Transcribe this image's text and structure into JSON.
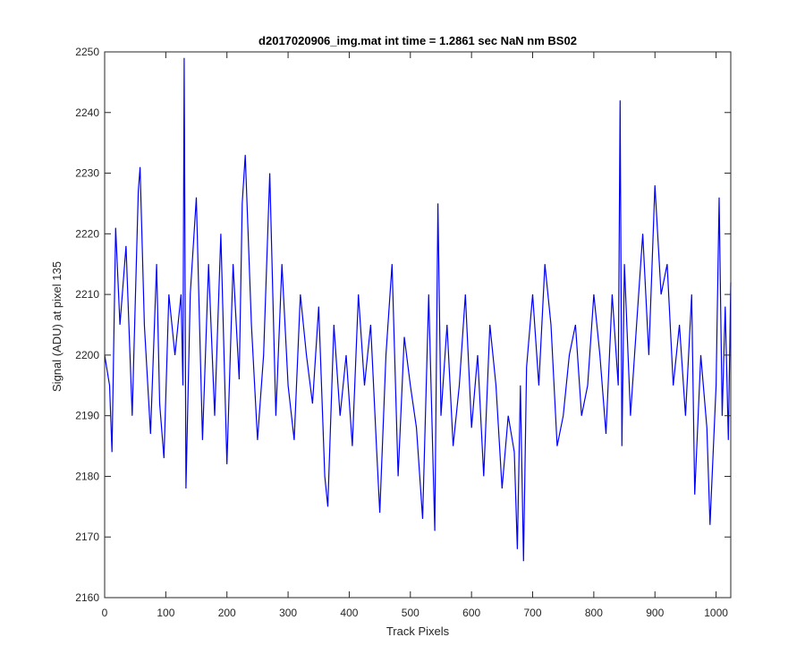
{
  "chart_data": {
    "type": "line",
    "title": "d2017020906_img.mat int time = 1.2861 sec  NaN nm BS02",
    "xlabel": "Track Pixels",
    "ylabel": "Signal (ADU) at pixel 135",
    "xlim": [
      0,
      1024
    ],
    "ylim": [
      2160,
      2250
    ],
    "xticks": [
      0,
      100,
      200,
      300,
      400,
      500,
      600,
      700,
      800,
      900,
      1000
    ],
    "yticks": [
      2160,
      2170,
      2180,
      2190,
      2200,
      2210,
      2220,
      2230,
      2240,
      2250
    ],
    "grid": false,
    "series": [
      {
        "color": "#0000ff",
        "x": [
          0,
          8,
          12,
          18,
          25,
          35,
          45,
          55,
          58,
          65,
          75,
          85,
          90,
          97,
          105,
          115,
          125,
          128,
          130,
          133,
          140,
          150,
          160,
          170,
          180,
          190,
          200,
          210,
          220,
          225,
          230,
          240,
          250,
          260,
          270,
          280,
          290,
          300,
          310,
          320,
          330,
          340,
          350,
          360,
          365,
          375,
          385,
          395,
          405,
          415,
          425,
          435,
          445,
          450,
          460,
          470,
          480,
          490,
          500,
          510,
          520,
          530,
          540,
          545,
          550,
          560,
          570,
          580,
          590,
          600,
          610,
          620,
          630,
          640,
          650,
          660,
          670,
          675,
          680,
          685,
          690,
          700,
          710,
          720,
          730,
          740,
          750,
          760,
          770,
          780,
          790,
          800,
          810,
          820,
          830,
          840,
          843,
          846,
          850,
          860,
          870,
          880,
          890,
          900,
          910,
          920,
          930,
          940,
          950,
          960,
          965,
          975,
          985,
          990,
          1000,
          1005,
          1010,
          1015,
          1020,
          1024
        ],
        "y": [
          2200,
          2195,
          2184,
          2221,
          2205,
          2218,
          2190,
          2227,
          2231,
          2205,
          2187,
          2215,
          2192,
          2183,
          2210,
          2200,
          2210,
          2195,
          2249,
          2178,
          2210,
          2226,
          2186,
          2215,
          2190,
          2220,
          2182,
          2215,
          2196,
          2225,
          2233,
          2205,
          2186,
          2200,
          2230,
          2190,
          2215,
          2195,
          2186,
          2210,
          2200,
          2192,
          2208,
          2180,
          2175,
          2205,
          2190,
          2200,
          2185,
          2210,
          2195,
          2205,
          2184,
          2174,
          2200,
          2215,
          2180,
          2203,
          2195,
          2188,
          2173,
          2210,
          2171,
          2225,
          2190,
          2205,
          2185,
          2195,
          2210,
          2188,
          2200,
          2180,
          2205,
          2195,
          2178,
          2190,
          2184,
          2168,
          2195,
          2166,
          2198,
          2210,
          2195,
          2215,
          2205,
          2185,
          2190,
          2200,
          2205,
          2190,
          2195,
          2210,
          2200,
          2187,
          2210,
          2195,
          2242,
          2185,
          2215,
          2190,
          2205,
          2220,
          2200,
          2228,
          2210,
          2215,
          2195,
          2205,
          2190,
          2210,
          2177,
          2200,
          2188,
          2172,
          2195,
          2226,
          2190,
          2208,
          2186,
          2212
        ]
      }
    ]
  }
}
